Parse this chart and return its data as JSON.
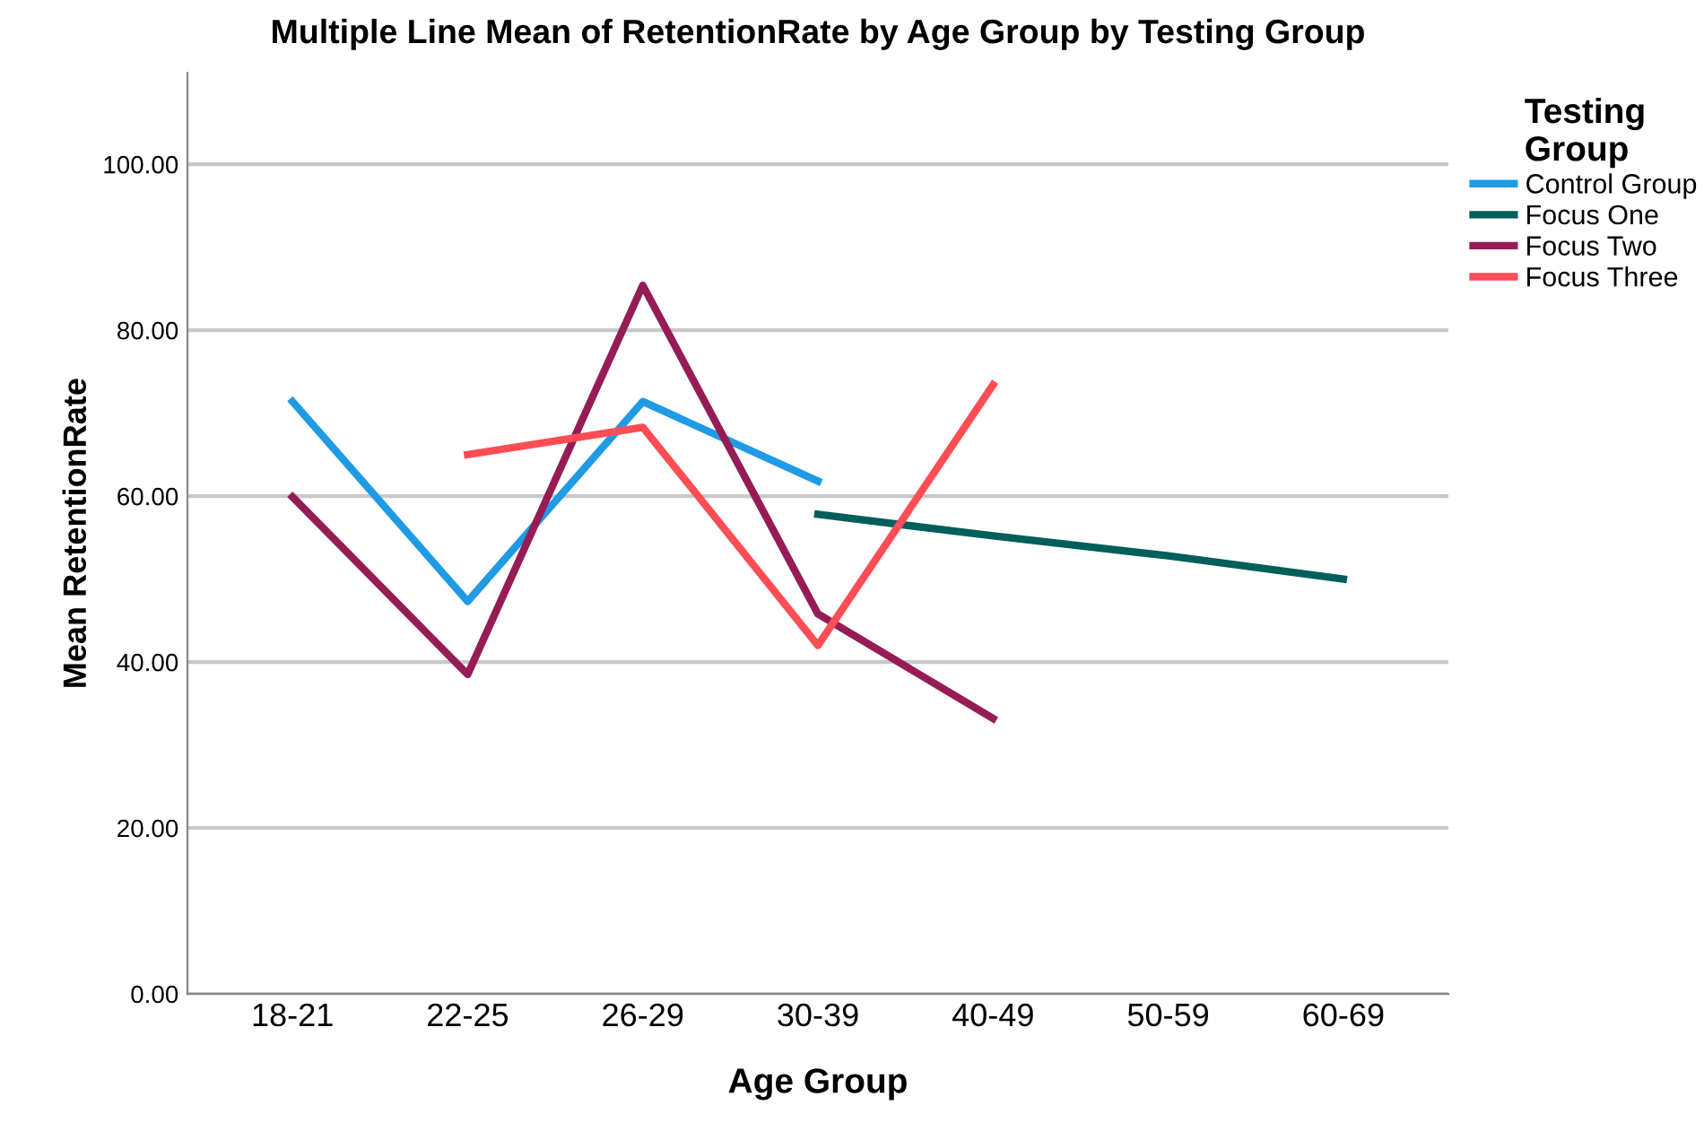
{
  "chart_data": {
    "type": "line",
    "title": "Multiple Line Mean of RetentionRate by Age Group by Testing Group",
    "xlabel": "Age Group",
    "ylabel": "Mean RetentionRate",
    "legend_title": "Testing\nGroup",
    "categories": [
      "18-21",
      "22-25",
      "26-29",
      "30-39",
      "40-49",
      "50-59",
      "60-69"
    ],
    "series": [
      {
        "name": "Control Group",
        "color": "#1f9be5",
        "values": [
          71.4,
          47.3,
          71.4,
          61.8,
          null,
          null,
          null
        ]
      },
      {
        "name": "Focus One",
        "color": "#005f5a",
        "values": [
          null,
          null,
          null,
          57.8,
          55.2,
          52.8,
          50.0
        ]
      },
      {
        "name": "Focus Two",
        "color": "#951c55",
        "values": [
          59.9,
          38.5,
          85.4,
          45.8,
          33.2,
          null,
          null
        ]
      },
      {
        "name": "Focus Three",
        "color": "#fe4d55",
        "values": [
          null,
          65.0,
          68.3,
          42.0,
          73.4,
          null,
          null
        ]
      }
    ],
    "ylim": [
      0,
      111
    ],
    "yticks": [
      {
        "value": 0,
        "label": "0.00"
      },
      {
        "value": 20,
        "label": "20.00"
      },
      {
        "value": 40,
        "label": "40.00"
      },
      {
        "value": 60,
        "label": "60.00"
      },
      {
        "value": 80,
        "label": "80.00"
      },
      {
        "value": 100,
        "label": "100.00"
      }
    ],
    "grid": "y",
    "legend": "top right",
    "line_style": "solid",
    "marker": "none"
  }
}
